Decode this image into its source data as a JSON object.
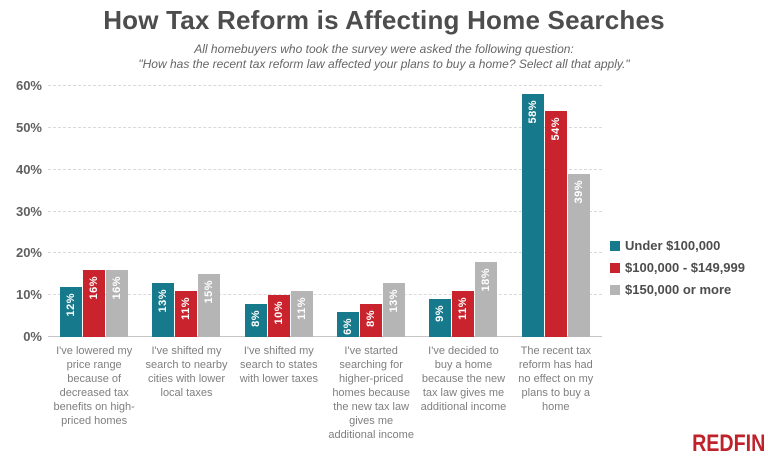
{
  "title": "How Tax Reform is Affecting Home Searches",
  "subtitle": {
    "line1": "All homebuyers who took the survey were asked the following question:",
    "line2": "\"How has the recent tax reform law affected your plans to buy a home? Select all that apply.\""
  },
  "brand": "REDFIN",
  "colors": {
    "teal": "#17798c",
    "red": "#c9242d",
    "gray": "#b5b5b5",
    "gridline": "#d9d9d9",
    "baseline": "#c6c6c6",
    "title_text": "#4d4d4d",
    "subtitle_text": "#666666",
    "axis_text": "#606060",
    "category_text": "#7f7f7f",
    "data_label_text": "#ffffff",
    "logo_red": "#c0222b"
  },
  "chart_data": {
    "type": "bar",
    "title": "How Tax Reform is Affecting Home Searches",
    "subtitle": "All homebuyers who took the survey were asked the following question: \"How has the recent tax reform law affected your plans to buy a home? Select all that apply.\"",
    "categories": [
      "I've lowered my price range because of decreased tax benefits on high-priced homes",
      "I've shifted my search to nearby cities with lower local taxes",
      "I've shifted my search to states with lower taxes",
      "I've started searching for higher-priced homes because the new tax law gives me additional income",
      "I've decided to buy a home because the new tax law gives me additional income",
      "The recent tax reform has had no effect on my plans to buy a home"
    ],
    "series": [
      {
        "name": "Under $100,000",
        "color": "#17798c",
        "values": [
          12,
          13,
          8,
          6,
          9,
          58
        ]
      },
      {
        "name": "$100,000 - $149,999",
        "color": "#c9242d",
        "values": [
          16,
          11,
          10,
          8,
          11,
          54
        ]
      },
      {
        "name": "$150,000 or more",
        "color": "#b5b5b5",
        "values": [
          16,
          15,
          11,
          13,
          18,
          39
        ]
      }
    ],
    "y_ticks": [
      "0%",
      "10%",
      "20%",
      "30%",
      "40%",
      "50%",
      "60%"
    ],
    "ylim": [
      0,
      60
    ],
    "grid": true,
    "gridline_style": "dashed",
    "legend_position": "right",
    "data_label_format": "{value}%",
    "data_label_rotation": -90,
    "xlabel": "",
    "ylabel": ""
  }
}
